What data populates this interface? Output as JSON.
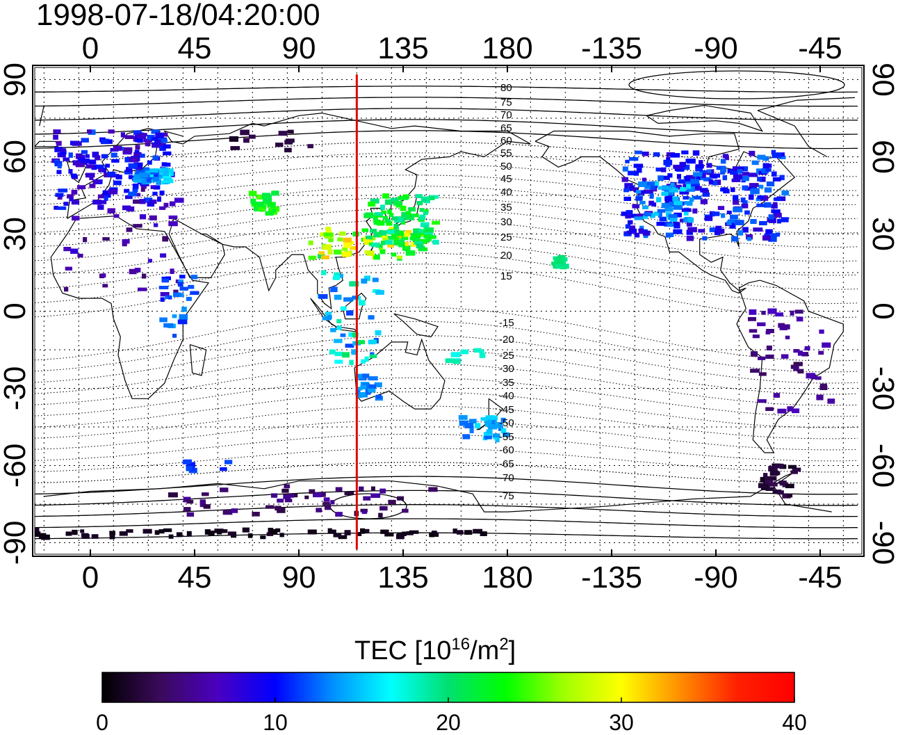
{
  "title": "1998-07-18/04:20:00",
  "map": {
    "projection": "equirectangular",
    "lon_center": 180,
    "top_lon_ticks": [
      "0",
      "45",
      "90",
      "135",
      "180",
      "-135",
      "-90",
      "-45"
    ],
    "bottom_lon_ticks": [
      "0",
      "45",
      "90",
      "135",
      "180",
      "-135",
      "-90",
      "-45"
    ],
    "lat_ticks": [
      "90",
      "60",
      "30",
      "0",
      "-30",
      "-60",
      "-90"
    ],
    "grid": true,
    "meridian_marker": {
      "lon": 115,
      "color": "#e00000"
    },
    "magnetic_latitude_labels": {
      "north": [
        "80",
        "75",
        "70",
        "65",
        "60",
        "55",
        "50",
        "45",
        "40",
        "35",
        "30",
        "25",
        "20",
        "15"
      ],
      "south": [
        "-15",
        "-20",
        "-25",
        "-30",
        "-35",
        "-40",
        "-45",
        "-50",
        "-55",
        "-60",
        "-65",
        "-70",
        "-75"
      ]
    }
  },
  "colorbar": {
    "label_main": "TEC  [10",
    "label_sup1": "16",
    "label_mid": "/m",
    "label_sup2": "2",
    "label_end": "]",
    "ticks": [
      "0",
      "10",
      "20",
      "30",
      "40"
    ],
    "min": 0,
    "max": 40,
    "colors": [
      "#000000",
      "#3a0a5a",
      "#4a00c0",
      "#0000ff",
      "#0090ff",
      "#00ffff",
      "#00e070",
      "#00ff00",
      "#a0ff00",
      "#ffff00",
      "#ff9000",
      "#ff2000",
      "#ff0000"
    ]
  }
}
